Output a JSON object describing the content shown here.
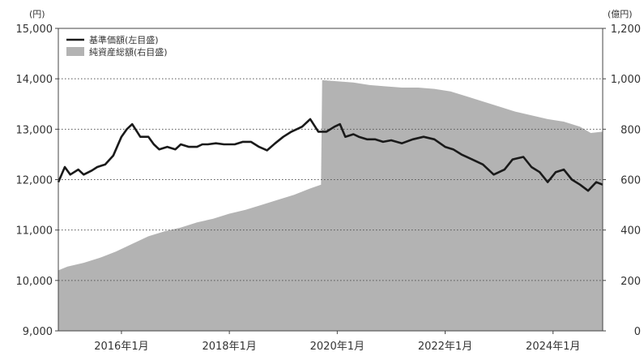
{
  "chart_data": {
    "type": "line",
    "left_axis": {
      "unit": "(円)",
      "ticks": [
        "15,000",
        "14,000",
        "13,000",
        "12,000",
        "11,000",
        "10,000",
        "9,000"
      ],
      "ylim": [
        9000,
        15000
      ]
    },
    "right_axis": {
      "unit": "(億円)",
      "ticks": [
        "1,200",
        "1,000",
        "800",
        "600",
        "400",
        "200",
        "0"
      ],
      "ylim": [
        0,
        1200
      ]
    },
    "x_ticks": [
      "2016年1月",
      "2018年1月",
      "2020年1月",
      "2022年1月",
      "2024年1月"
    ],
    "x_tick_values": [
      2016.0,
      2018.0,
      2020.0,
      2022.0,
      2024.0
    ],
    "xlim": [
      2014.83,
      2024.92
    ],
    "grid": true,
    "legend_position": "top-left",
    "series": [
      {
        "name": "基準価額(左目盛)",
        "axis": "left",
        "kind": "line",
        "color": "#1a1a1a",
        "x": [
          2014.83,
          2014.95,
          2015.05,
          2015.2,
          2015.3,
          2015.45,
          2015.55,
          2015.7,
          2015.85,
          2016.0,
          2016.1,
          2016.2,
          2016.35,
          2016.5,
          2016.6,
          2016.7,
          2016.85,
          2017.0,
          2017.1,
          2017.25,
          2017.4,
          2017.5,
          2017.6,
          2017.75,
          2017.9,
          2018.0,
          2018.1,
          2018.25,
          2018.4,
          2018.55,
          2018.7,
          2018.85,
          2019.0,
          2019.15,
          2019.25,
          2019.35,
          2019.5,
          2019.65,
          2019.8,
          2019.95,
          2020.05,
          2020.15,
          2020.3,
          2020.4,
          2020.55,
          2020.7,
          2020.85,
          2021.0,
          2021.2,
          2021.4,
          2021.6,
          2021.8,
          2022.0,
          2022.15,
          2022.3,
          2022.5,
          2022.7,
          2022.9,
          2023.1,
          2023.25,
          2023.45,
          2023.6,
          2023.75,
          2023.9,
          2024.05,
          2024.2,
          2024.35,
          2024.5,
          2024.65,
          2024.8,
          2024.92
        ],
        "values": [
          11950,
          12250,
          12100,
          12200,
          12100,
          12180,
          12250,
          12300,
          12480,
          12850,
          13000,
          13100,
          12850,
          12850,
          12700,
          12600,
          12650,
          12600,
          12700,
          12650,
          12650,
          12700,
          12700,
          12720,
          12700,
          12700,
          12700,
          12750,
          12750,
          12650,
          12580,
          12720,
          12850,
          12950,
          13000,
          13050,
          13200,
          12950,
          12950,
          13050,
          13100,
          12850,
          12900,
          12850,
          12800,
          12800,
          12750,
          12780,
          12720,
          12800,
          12850,
          12800,
          12650,
          12600,
          12500,
          12400,
          12300,
          12100,
          12200,
          12400,
          12450,
          12250,
          12150,
          11950,
          12150,
          12200,
          12000,
          11900,
          11780,
          11950,
          11900
        ]
      },
      {
        "name": "純資産総額(右目盛)",
        "axis": "right",
        "kind": "area",
        "color": "#b3b3b3",
        "x": [
          2014.83,
          2015.0,
          2015.3,
          2015.6,
          2015.9,
          2016.2,
          2016.5,
          2016.8,
          2017.1,
          2017.4,
          2017.7,
          2018.0,
          2018.3,
          2018.6,
          2018.9,
          2019.2,
          2019.5,
          2019.7,
          2019.72,
          2020.0,
          2020.3,
          2020.6,
          2020.9,
          2021.2,
          2021.5,
          2021.8,
          2022.1,
          2022.4,
          2022.7,
          2023.0,
          2023.3,
          2023.6,
          2023.9,
          2024.2,
          2024.5,
          2024.7,
          2024.92
        ],
        "values": [
          240,
          255,
          270,
          290,
          315,
          345,
          375,
          395,
          410,
          430,
          445,
          465,
          480,
          500,
          520,
          540,
          565,
          580,
          995,
          990,
          985,
          975,
          970,
          965,
          965,
          960,
          950,
          930,
          910,
          890,
          870,
          855,
          840,
          830,
          810,
          785,
          790
        ]
      }
    ]
  }
}
